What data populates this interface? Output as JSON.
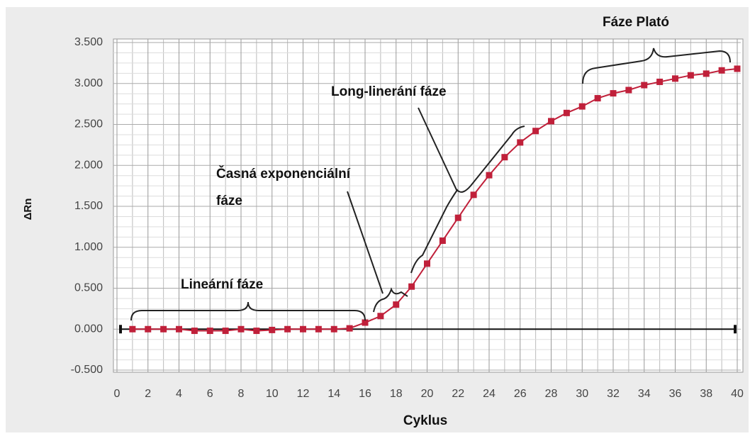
{
  "chart_data": {
    "type": "line",
    "x_label": "Cyklus",
    "y_label": "ΔRn",
    "x": [
      1,
      2,
      3,
      4,
      5,
      6,
      7,
      8,
      9,
      10,
      11,
      12,
      13,
      14,
      15,
      16,
      17,
      18,
      19,
      20,
      21,
      22,
      23,
      24,
      25,
      26,
      27,
      28,
      29,
      30,
      31,
      32,
      33,
      34,
      35,
      36,
      37,
      38,
      39,
      40
    ],
    "series": [
      {
        "name": "ΔRn",
        "color": "#c0203a",
        "values": [
          0,
          0,
          0,
          0,
          -0.02,
          -0.02,
          -0.02,
          0,
          -0.02,
          -0.01,
          0,
          0,
          0,
          0,
          0.01,
          0.08,
          0.16,
          0.3,
          0.52,
          0.8,
          1.08,
          1.36,
          1.64,
          1.88,
          2.1,
          2.28,
          2.42,
          2.54,
          2.64,
          2.72,
          2.82,
          2.88,
          2.92,
          2.98,
          3.02,
          3.06,
          3.1,
          3.12,
          3.16,
          3.18
        ]
      }
    ],
    "xlim": [
      0,
      40
    ],
    "xticks": [
      0,
      2,
      4,
      6,
      8,
      10,
      12,
      14,
      16,
      18,
      20,
      22,
      24,
      26,
      28,
      30,
      32,
      34,
      36,
      38,
      40
    ],
    "ylim": [
      -0.5,
      3.5
    ],
    "yticks": [
      {
        "value": -0.5,
        "label": "-0.500"
      },
      {
        "value": 0,
        "label": "0.000"
      },
      {
        "value": 0.5,
        "label": "0.500"
      },
      {
        "value": 1,
        "label": "1.000"
      },
      {
        "value": 1.5,
        "label": "1.500"
      },
      {
        "value": 2,
        "label": "2.000"
      },
      {
        "value": 2.5,
        "label": "2.500"
      },
      {
        "value": 3,
        "label": "3.000"
      },
      {
        "value": 3.5,
        "label": "3.500"
      }
    ],
    "grid": true,
    "annotations": [
      "Fáze Plató",
      "Long-linerání fáze",
      "Časná exponenciální",
      "fáze",
      "Lineární fáze"
    ]
  }
}
